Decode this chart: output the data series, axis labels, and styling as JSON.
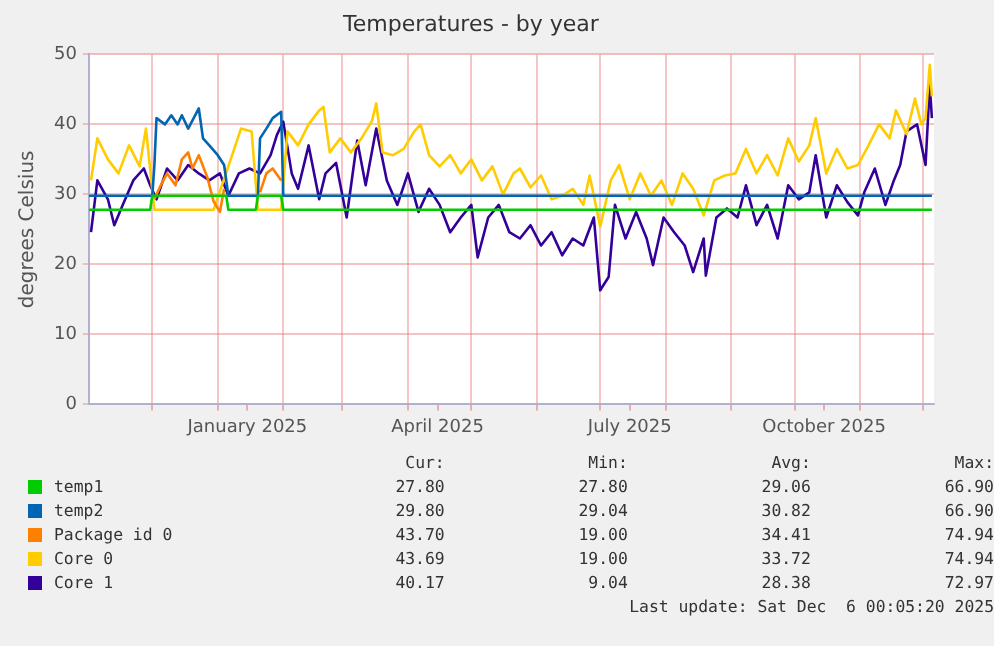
{
  "chart_data": {
    "type": "line",
    "title": "Temperatures - by year",
    "ylabel": "degrees Celsius",
    "xlim": [
      "2024-11-01",
      "2025-12-06"
    ],
    "xticks": [
      {
        "value": "2024-12-01",
        "label": null
      },
      {
        "value": "2025-01-01",
        "label": null
      },
      {
        "value": "2025-01-15",
        "label": "January 2025"
      },
      {
        "value": "2025-02-01",
        "label": null
      },
      {
        "value": "2025-03-01",
        "label": null
      },
      {
        "value": "2025-04-01",
        "label": null
      },
      {
        "value": "2025-04-15",
        "label": "April 2025"
      },
      {
        "value": "2025-05-01",
        "label": null
      },
      {
        "value": "2025-06-01",
        "label": null
      },
      {
        "value": "2025-07-01",
        "label": null
      },
      {
        "value": "2025-07-15",
        "label": "July 2025"
      },
      {
        "value": "2025-08-01",
        "label": null
      },
      {
        "value": "2025-09-01",
        "label": null
      },
      {
        "value": "2025-10-01",
        "label": null
      },
      {
        "value": "2025-10-15",
        "label": "October 2025"
      },
      {
        "value": "2025-11-01",
        "label": null
      },
      {
        "value": "2025-12-01",
        "label": null
      }
    ],
    "ylim": [
      0,
      50
    ],
    "yticks": [
      0,
      10,
      20,
      30,
      40,
      50
    ],
    "grid": true,
    "legend": "bottom",
    "marker": "none",
    "line_style": "solid",
    "series": [
      {
        "name": "temp1",
        "color": "#00cc00",
        "x": [
          "2024-11-01",
          "2024-11-30",
          "2024-12-01",
          "2025-01-05",
          "2025-01-06",
          "2025-01-19",
          "2025-01-20",
          "2025-01-31",
          "2025-02-01",
          "2025-12-05"
        ],
        "values": [
          27.8,
          27.8,
          29.8,
          29.8,
          27.8,
          27.8,
          29.8,
          29.8,
          27.8,
          27.8
        ]
      },
      {
        "name": "temp2",
        "color": "#0066b3",
        "x": [
          "2024-11-01",
          "2024-12-01",
          "2024-12-02",
          "2024-12-03",
          "2024-12-07",
          "2024-12-10",
          "2024-12-13",
          "2024-12-15",
          "2024-12-18",
          "2024-12-23",
          "2024-12-25",
          "2024-12-28",
          "2025-01-01",
          "2025-01-04",
          "2025-01-06",
          "2025-01-20",
          "2025-01-21",
          "2025-01-24",
          "2025-01-27",
          "2025-01-31",
          "2025-02-01",
          "2025-12-05"
        ],
        "values": [
          29.8,
          29.8,
          34.2,
          40.9,
          40,
          41.3,
          40,
          41.3,
          39.4,
          42.3,
          38,
          37,
          35.6,
          34.2,
          29.8,
          29.8,
          38,
          39.4,
          40.9,
          41.8,
          29.8,
          29.8
        ]
      },
      {
        "name": "Package id 0",
        "color": "#ff8000",
        "x": [
          "2024-12-02",
          "2024-12-05",
          "2024-12-08",
          "2024-12-12",
          "2024-12-15",
          "2024-12-18",
          "2024-12-20",
          "2024-12-23",
          "2024-12-27",
          "2024-12-30",
          "2025-01-02",
          "2025-01-04",
          "2025-01-12",
          "2025-01-21",
          "2025-01-24",
          "2025-01-27",
          "2025-01-31"
        ],
        "values": [
          29.3,
          31.3,
          33,
          31.3,
          35,
          36,
          33.7,
          35.6,
          32.5,
          29,
          27.5,
          30.8,
          null,
          30.3,
          33,
          33.7,
          32
        ]
      },
      {
        "name": "Core 0",
        "color": "#ffcc00",
        "x": [
          "2024-11-02",
          "2024-11-05",
          "2024-11-10",
          "2024-11-15",
          "2024-11-20",
          "2024-11-25",
          "2024-11-28",
          "2024-12-02",
          "2024-12-30",
          "2025-01-06",
          "2025-01-12",
          "2025-01-17",
          "2025-01-20",
          "2025-01-31",
          "2025-02-03",
          "2025-02-08",
          "2025-02-13",
          "2025-02-18",
          "2025-02-20",
          "2025-02-23",
          "2025-02-28",
          "2025-03-05",
          "2025-03-10",
          "2025-03-15",
          "2025-03-17",
          "2025-03-20",
          "2025-03-25",
          "2025-03-30",
          "2025-04-04",
          "2025-04-07",
          "2025-04-11",
          "2025-04-16",
          "2025-04-21",
          "2025-04-26",
          "2025-05-01",
          "2025-05-06",
          "2025-05-11",
          "2025-05-16",
          "2025-05-21",
          "2025-05-24",
          "2025-05-29",
          "2025-06-03",
          "2025-06-08",
          "2025-06-13",
          "2025-06-18",
          "2025-06-23",
          "2025-06-26",
          "2025-07-01",
          "2025-07-06",
          "2025-07-10",
          "2025-07-15",
          "2025-07-20",
          "2025-07-25",
          "2025-07-30",
          "2025-08-04",
          "2025-08-09",
          "2025-08-14",
          "2025-08-19",
          "2025-08-24",
          "2025-08-29",
          "2025-09-03",
          "2025-09-08",
          "2025-09-13",
          "2025-09-18",
          "2025-09-23",
          "2025-09-28",
          "2025-10-03",
          "2025-10-08",
          "2025-10-11",
          "2025-10-16",
          "2025-10-21",
          "2025-10-26",
          "2025-10-31",
          "2025-11-05",
          "2025-11-10",
          "2025-11-15",
          "2025-11-18",
          "2025-11-23",
          "2025-11-27",
          "2025-11-30",
          "2025-12-02",
          "2025-12-04",
          "2025-12-05"
        ],
        "values": [
          32,
          38,
          35,
          33,
          37,
          34,
          39.4,
          27.8,
          27.8,
          34,
          39.4,
          39,
          27.8,
          27.8,
          39,
          37,
          40,
          42,
          42.5,
          36,
          38,
          36,
          38,
          40.5,
          43,
          36,
          35.6,
          36.5,
          39,
          40,
          35.6,
          34,
          35.6,
          33,
          35,
          32,
          34,
          30,
          33,
          33.7,
          31,
          32.7,
          29.3,
          29.8,
          30.8,
          28.5,
          32.7,
          25.4,
          32,
          34.2,
          29.3,
          33,
          29.8,
          32,
          28.5,
          33,
          30.8,
          27,
          32,
          32.7,
          33,
          36.5,
          33,
          35.6,
          32.7,
          38,
          34.7,
          37,
          40.9,
          33,
          36.5,
          33.7,
          34.2,
          37,
          40,
          38,
          42,
          38.6,
          43.7,
          40,
          40.9,
          48.5,
          44
        ]
      },
      {
        "name": "Core 1",
        "color": "#330099",
        "x": [
          "2024-11-02",
          "2024-11-05",
          "2024-11-10",
          "2024-11-13",
          "2024-11-17",
          "2024-11-22",
          "2024-11-27",
          "2024-11-30",
          "2024-12-03",
          "2024-12-08",
          "2024-12-13",
          "2024-12-18",
          "2024-12-23",
          "2024-12-28",
          "2025-01-02",
          "2025-01-06",
          "2025-01-11",
          "2025-01-16",
          "2025-01-21",
          "2025-01-26",
          "2025-01-29",
          "2025-02-01",
          "2025-02-05",
          "2025-02-08",
          "2025-02-13",
          "2025-02-18",
          "2025-02-21",
          "2025-02-26",
          "2025-03-03",
          "2025-03-08",
          "2025-03-12",
          "2025-03-17",
          "2025-03-22",
          "2025-03-27",
          "2025-04-01",
          "2025-04-06",
          "2025-04-11",
          "2025-04-16",
          "2025-04-21",
          "2025-04-26",
          "2025-05-01",
          "2025-05-04",
          "2025-05-09",
          "2025-05-14",
          "2025-05-19",
          "2025-05-24",
          "2025-05-29",
          "2025-06-03",
          "2025-06-08",
          "2025-06-13",
          "2025-06-18",
          "2025-06-23",
          "2025-06-28",
          "2025-07-01",
          "2025-07-05",
          "2025-07-08",
          "2025-07-13",
          "2025-07-18",
          "2025-07-23",
          "2025-07-26",
          "2025-07-31",
          "2025-08-05",
          "2025-08-10",
          "2025-08-14",
          "2025-08-19",
          "2025-08-20",
          "2025-08-25",
          "2025-08-30",
          "2025-09-04",
          "2025-09-08",
          "2025-09-13",
          "2025-09-18",
          "2025-09-23",
          "2025-09-28",
          "2025-10-03",
          "2025-10-08",
          "2025-10-11",
          "2025-10-16",
          "2025-10-21",
          "2025-10-26",
          "2025-10-31",
          "2025-11-03",
          "2025-11-08",
          "2025-11-13",
          "2025-11-17",
          "2025-11-20",
          "2025-11-23",
          "2025-11-28",
          "2025-12-02",
          "2025-12-04",
          "2025-12-05"
        ],
        "values": [
          24.6,
          32,
          29.3,
          25.6,
          28.5,
          32,
          33.7,
          31.3,
          29.3,
          33.7,
          32,
          34.2,
          33,
          32,
          33,
          29.8,
          33,
          33.7,
          33,
          35.6,
          38.5,
          40.4,
          33,
          30.8,
          37,
          29.3,
          33,
          34.5,
          26.7,
          37.7,
          31.3,
          39.4,
          32,
          28.5,
          33,
          27.5,
          30.8,
          28.5,
          24.6,
          26.7,
          28.5,
          21,
          26.7,
          28.5,
          24.6,
          23.7,
          25.6,
          22.7,
          24.6,
          21.3,
          23.7,
          22.7,
          26.7,
          16.3,
          18.2,
          28.5,
          23.7,
          27.5,
          23.7,
          19.9,
          26.7,
          24.6,
          22.7,
          18.9,
          23.7,
          18.4,
          26.7,
          28,
          26.7,
          31.3,
          25.6,
          28.5,
          23.7,
          31.3,
          29.3,
          30.3,
          35.6,
          26.7,
          31.3,
          28.9,
          27,
          30.3,
          33.7,
          28.5,
          32,
          34.2,
          39,
          40,
          34.2,
          45.7,
          40.9
        ]
      }
    ],
    "annotations": [
      "Cur:",
      "Min:",
      "Avg:",
      "Max:",
      "27.80",
      "27.80",
      "29.06",
      "66.90",
      "29.80",
      "29.04",
      "30.82",
      "66.90",
      "43.70",
      "19.00",
      "34.41",
      "74.94",
      "43.69",
      "19.00",
      "33.72",
      "74.94",
      "40.17",
      "9.04",
      "28.38",
      "72.97",
      "Last update: Sat Dec  6 00:05:20 2025"
    ]
  }
}
